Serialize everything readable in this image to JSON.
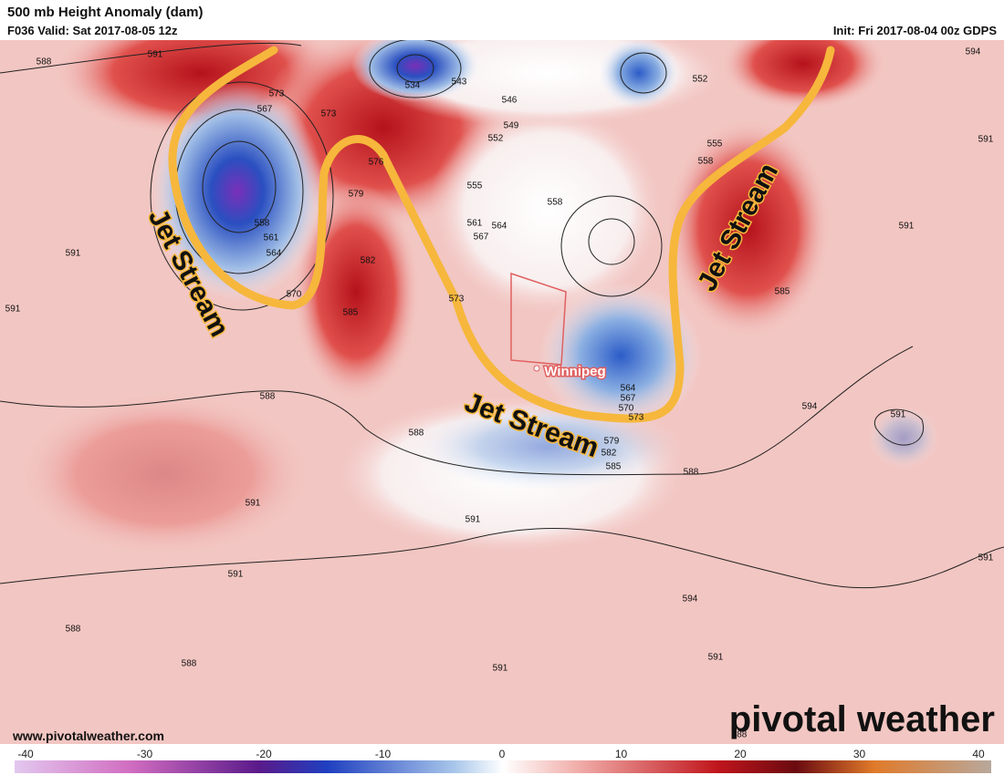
{
  "header": {
    "title": "500 mb Height Anomaly (dam)",
    "valid": "F036 Valid: Sat 2017-08-05 12z",
    "init": "Init: Fri 2017-08-04 00z GDPS"
  },
  "map": {
    "contour_labels": [
      588,
      591,
      573,
      567,
      573,
      576,
      579,
      582,
      585,
      558,
      561,
      564,
      570,
      534,
      543,
      546,
      549,
      552,
      555,
      558,
      561,
      564,
      567,
      573,
      555,
      558,
      552,
      594,
      591,
      591,
      585,
      591,
      591,
      588,
      588,
      594,
      591,
      579,
      582,
      585,
      588,
      591,
      591,
      591,
      591,
      594,
      588,
      588,
      591,
      591,
      588,
      564,
      567,
      570,
      573
    ],
    "jet_labels": [
      "Jet Stream",
      "Jet Stream",
      "Jet Stream"
    ],
    "city": "Winnipeg"
  },
  "footer": {
    "website": "www.pivotalweather.com",
    "brand": "pivotal weather"
  },
  "colorbar": {
    "ticks": [
      -40,
      -30,
      -20,
      -10,
      0,
      10,
      20,
      30,
      40
    ]
  }
}
